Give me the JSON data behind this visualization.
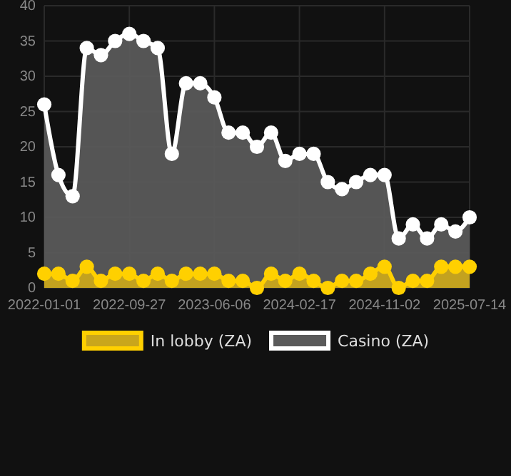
{
  "chart_data": {
    "type": "area",
    "categories": [
      "2022-01-01",
      null,
      null,
      null,
      null,
      null,
      "2022-09-27",
      null,
      null,
      null,
      null,
      null,
      "2023-06-06",
      null,
      null,
      null,
      null,
      null,
      "2024-02-17",
      null,
      null,
      null,
      null,
      null,
      "2024-11-02",
      null,
      null,
      null,
      null,
      null,
      "2025-07-14"
    ],
    "series": [
      {
        "name": "In lobby (ZA)",
        "color": "#ffd000",
        "values": [
          2,
          2,
          1,
          3,
          1,
          2,
          2,
          1,
          2,
          1,
          2,
          2,
          2,
          1,
          1,
          0,
          2,
          1,
          2,
          1,
          0,
          1,
          1,
          2,
          3,
          0,
          1,
          1,
          3,
          3,
          3
        ]
      },
      {
        "name": "Casino (ZA)",
        "color": "#ffffff",
        "values": [
          26,
          16,
          13,
          34,
          33,
          35,
          36,
          35,
          34,
          19,
          29,
          29,
          27,
          22,
          22,
          20,
          22,
          18,
          19,
          19,
          15,
          14,
          15,
          16,
          16,
          7,
          9,
          7,
          9,
          8,
          10
        ]
      }
    ],
    "ylim": [
      0,
      40
    ],
    "yticks": [
      0,
      5,
      10,
      15,
      20,
      25,
      30,
      35,
      40
    ],
    "grid": true,
    "legend": "bottom",
    "marker": "circle"
  }
}
